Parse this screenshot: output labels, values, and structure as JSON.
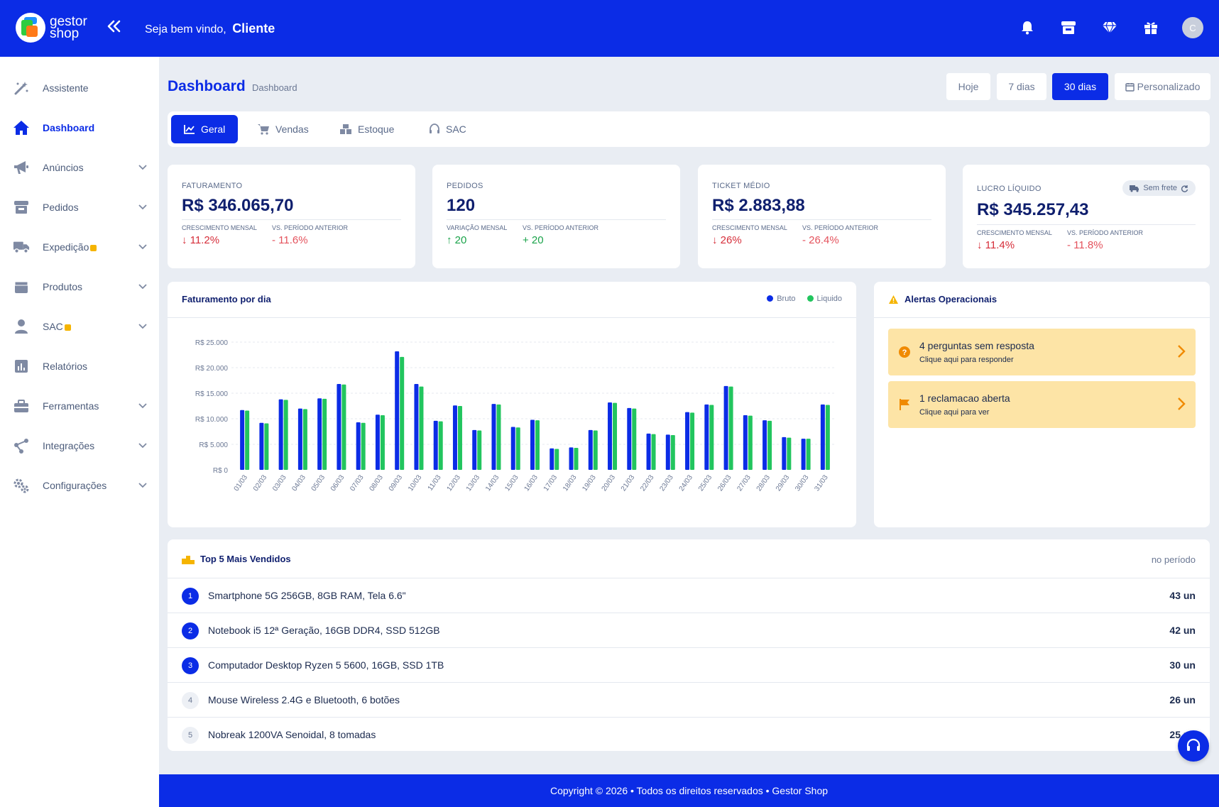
{
  "brand": {
    "line1": "gestor",
    "line2": "shop"
  },
  "header": {
    "welcome_prefix": "Seja bem vindo,",
    "user_name": "Cliente",
    "avatar_initial": "C",
    "icons": [
      "bell-icon",
      "store-icon",
      "diamond-icon",
      "gift-icon"
    ]
  },
  "sidebar": {
    "items": [
      {
        "label": "Assistente",
        "icon": "magic-wand-icon",
        "expandable": false,
        "locked": false
      },
      {
        "label": "Dashboard",
        "icon": "home-icon",
        "expandable": false,
        "locked": false,
        "active": true
      },
      {
        "label": "Anúncios",
        "icon": "megaphone-icon",
        "expandable": true,
        "locked": false
      },
      {
        "label": "Pedidos",
        "icon": "shop-icon",
        "expandable": true,
        "locked": false
      },
      {
        "label": "Expedição",
        "icon": "truck-icon",
        "expandable": true,
        "locked": true
      },
      {
        "label": "Produtos",
        "icon": "box-icon",
        "expandable": true,
        "locked": false
      },
      {
        "label": "SAC",
        "icon": "user-icon",
        "expandable": true,
        "locked": true
      },
      {
        "label": "Relatórios",
        "icon": "report-icon",
        "expandable": false,
        "locked": false
      },
      {
        "label": "Ferramentas",
        "icon": "toolbox-icon",
        "expandable": true,
        "locked": false
      },
      {
        "label": "Integrações",
        "icon": "integration-icon",
        "expandable": true,
        "locked": false
      },
      {
        "label": "Configurações",
        "icon": "gears-icon",
        "expandable": true,
        "locked": false
      }
    ]
  },
  "page": {
    "title": "Dashboard",
    "breadcrumb": "Dashboard",
    "ranges": [
      "Hoje",
      "7 dias",
      "30 dias",
      "Personalizado"
    ],
    "active_range": "30 dias",
    "tabs": [
      "Geral",
      "Vendas",
      "Estoque",
      "SAC"
    ],
    "active_tab": "Geral"
  },
  "kpis": [
    {
      "label": "FATURAMENTO",
      "value": "R$ 346.065,70",
      "sub1": "CRESCIMENTO MENSAL",
      "delta1": "↓ 11.2%",
      "sub2": "VS. PERÍODO ANTERIOR",
      "delta2": "- 11.6%"
    },
    {
      "label": "PEDIDOS",
      "value": "120",
      "sub1": "VARIAÇÃO MENSAL",
      "delta1": "↑ 20",
      "sub2": "VS. PERÍODO ANTERIOR",
      "delta2": "+ 20"
    },
    {
      "label": "TICKET MÉDIO",
      "value": "R$ 2.883,88",
      "sub1": "CRESCIMENTO MENSAL",
      "delta1": "↓ 26%",
      "sub2": "VS. PERÍODO ANTERIOR",
      "delta2": "- 26.4%"
    },
    {
      "label": "LUCRO LÍQUIDO",
      "value": "R$ 345.257,43",
      "sub1": "CRESCIMENTO MENSAL",
      "delta1": "↓ 11.4%",
      "sub2": "VS. PERÍODO ANTERIOR",
      "delta2": "- 11.8%",
      "badge": "Sem frete"
    }
  ],
  "colors": {
    "primary": "#0b2ce6",
    "bruto": "#0b2ce6",
    "liquido": "#22c55e",
    "alert_bg": "#fde4a6",
    "negative": "#d62e3a",
    "positive": "#1aa34a"
  },
  "chart": {
    "title": "Faturamento por dia"
  },
  "chart_data": {
    "type": "bar",
    "categories": [
      "01/03",
      "02/03",
      "03/03",
      "04/03",
      "05/03",
      "06/03",
      "07/03",
      "08/03",
      "09/03",
      "10/03",
      "11/03",
      "12/03",
      "13/03",
      "14/03",
      "15/03",
      "16/03",
      "17/03",
      "18/03",
      "19/03",
      "20/03",
      "21/03",
      "22/03",
      "23/03",
      "24/03",
      "25/03",
      "26/03",
      "27/03",
      "28/03",
      "29/03",
      "30/03",
      "31/03"
    ],
    "series": [
      {
        "name": "Bruto",
        "values": [
          11700,
          9200,
          13800,
          12000,
          14000,
          16800,
          9300,
          10800,
          23200,
          16800,
          9600,
          12600,
          7800,
          12900,
          8400,
          9800,
          4200,
          4400,
          7800,
          13200,
          12100,
          7100,
          6900,
          11300,
          12800,
          16400,
          10700,
          9700,
          6400,
          6100,
          12800
        ]
      },
      {
        "name": "Liquido",
        "values": [
          11600,
          9100,
          13700,
          11900,
          13900,
          16700,
          9200,
          10700,
          22100,
          16300,
          9500,
          12500,
          7700,
          12800,
          8300,
          9700,
          4100,
          4300,
          7700,
          13100,
          12000,
          7000,
          6800,
          11200,
          12700,
          16300,
          10600,
          9600,
          6300,
          6100,
          12700
        ]
      }
    ],
    "y_ticks": [
      "R$ 0",
      "R$ 5.000",
      "R$ 10.000",
      "R$ 15.000",
      "R$ 20.000",
      "R$ 25.000"
    ],
    "ylim": [
      0,
      25000
    ],
    "grid": true,
    "legend": "top-right"
  },
  "alerts": {
    "title": "Alertas Operacionais",
    "items": [
      {
        "title": "4 perguntas sem resposta",
        "subtitle": "Clique aqui para responder",
        "icon": "question-icon"
      },
      {
        "title": "1 reclamacao aberta",
        "subtitle": "Clique aqui para ver",
        "icon": "flag-icon"
      }
    ]
  },
  "top5": {
    "title": "Top 5 Mais Vendidos",
    "period": "no período",
    "items": [
      {
        "rank": "1",
        "name": "Smartphone 5G 256GB, 8GB RAM, Tela 6.6\"",
        "qty": "43 un"
      },
      {
        "rank": "2",
        "name": "Notebook i5 12ª Geração, 16GB DDR4, SSD 512GB",
        "qty": "42 un"
      },
      {
        "rank": "3",
        "name": "Computador Desktop Ryzen 5 5600, 16GB, SSD 1TB",
        "qty": "30 un"
      },
      {
        "rank": "4",
        "name": "Mouse Wireless 2.4G e Bluetooth, 6 botões",
        "qty": "26 un"
      },
      {
        "rank": "5",
        "name": "Nobreak 1200VA Senoidal, 8 tomadas",
        "qty": "25 un"
      }
    ]
  },
  "footer": {
    "text": "Copyright © 2026 • Todos os direitos reservados • Gestor Shop"
  }
}
